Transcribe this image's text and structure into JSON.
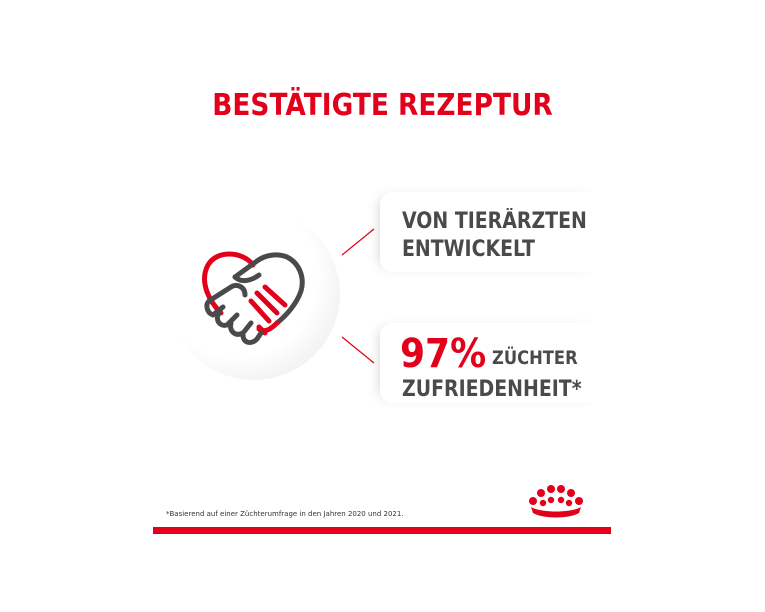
{
  "title": "BESTÄTIGTE REZEPTUR",
  "icon": "handshake-heart-icon",
  "features": {
    "first": {
      "line1": "VON TIERÄRZTEN",
      "line2": "ENTWICKELT"
    },
    "second": {
      "percent": "97%",
      "word1": "ZÜCHTER",
      "word2": "ZUFRIEDENHEIT*"
    }
  },
  "footnote": "*Basierend auf einer Züchterumfrage in den Jahren 2020 und 2021.",
  "logo": "royal-canin-crown-logo",
  "colors": {
    "accent": "#e3001b",
    "text": "#4a4a4a",
    "background": "#ffffff"
  }
}
